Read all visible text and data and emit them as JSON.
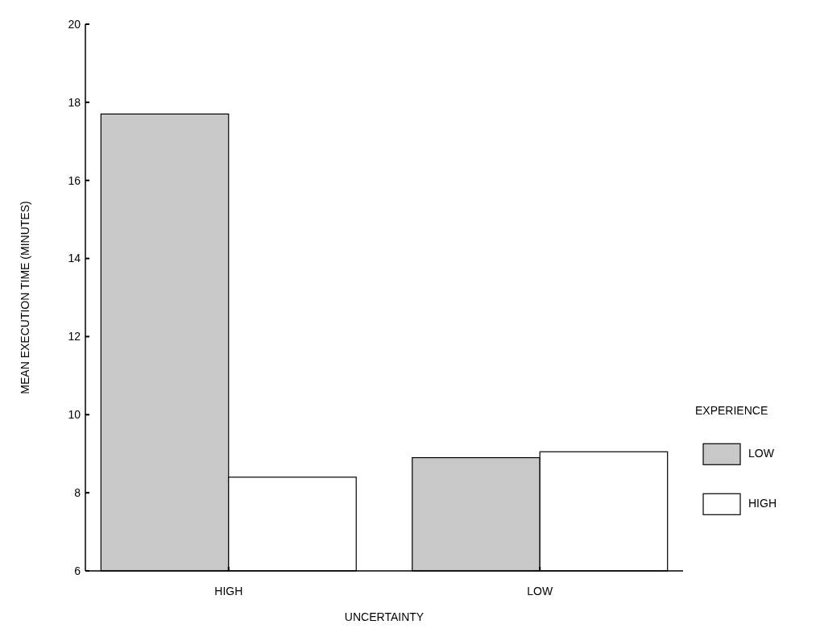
{
  "chart_data": {
    "type": "bar",
    "xlabel": "UNCERTAINTY",
    "ylabel": "MEAN EXECUTION TIME (MINUTES)",
    "categories": [
      "HIGH",
      "LOW"
    ],
    "series": [
      {
        "name": "LOW",
        "color": "#c8c8c8",
        "values": [
          17.7,
          8.9
        ]
      },
      {
        "name": "HIGH",
        "color": "#ffffff",
        "values": [
          8.4,
          9.05
        ]
      }
    ],
    "ylim": [
      6,
      20
    ],
    "yticks": [
      6,
      8,
      10,
      12,
      14,
      16,
      18,
      20
    ],
    "legend_title": "EXPERIENCE",
    "legend": "right",
    "grid": false
  }
}
